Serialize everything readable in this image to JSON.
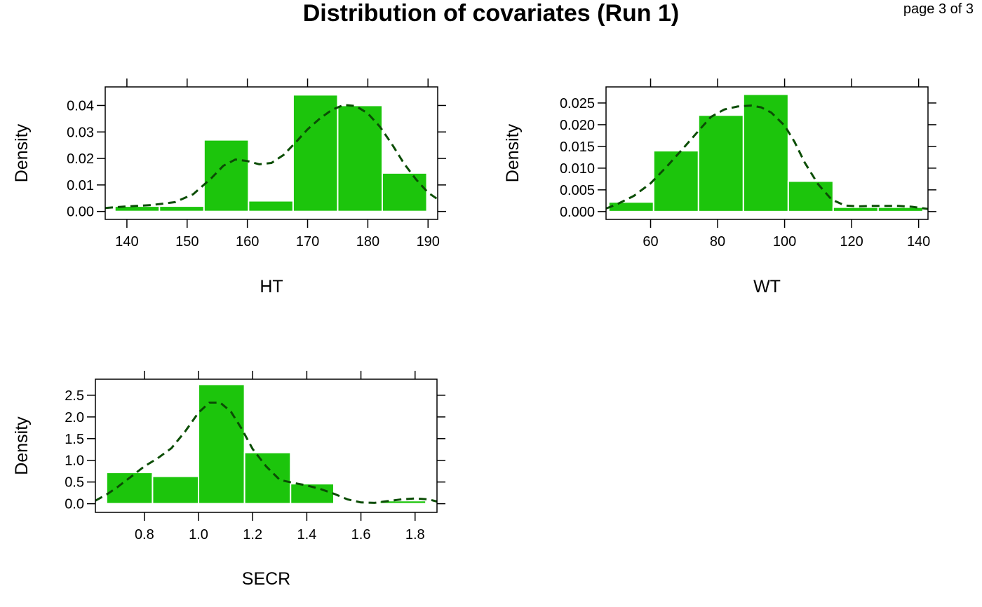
{
  "title": "Distribution of covariates (Run 1)",
  "page_indicator": "page 3 of 3",
  "colors": {
    "bar": "#1cc50c",
    "bar_edge": "#ffffff",
    "density": "#0b4d05",
    "axis": "#000000"
  },
  "chart_data": [
    {
      "type": "bar",
      "variant": "histogram-with-density",
      "xlabel": "HT",
      "ylabel": "Density",
      "xlim": [
        136.4,
        191.6
      ],
      "ylim": [
        -0.003,
        0.047
      ],
      "xticks": [
        140,
        150,
        160,
        170,
        180,
        190
      ],
      "xtick_labels": [
        "140",
        "150",
        "160",
        "170",
        "180",
        "190"
      ],
      "yticks": [
        0,
        0.01,
        0.02,
        0.03,
        0.04
      ],
      "ytick_labels": [
        "0.00",
        "0.01",
        "0.02",
        "0.03",
        "0.04"
      ],
      "bins": [
        {
          "from": 138,
          "to": 145.4,
          "density": 0.002
        },
        {
          "from": 145.4,
          "to": 152.8,
          "density": 0.002
        },
        {
          "from": 152.8,
          "to": 160.2,
          "density": 0.027
        },
        {
          "from": 160.2,
          "to": 167.6,
          "density": 0.004
        },
        {
          "from": 167.6,
          "to": 175,
          "density": 0.044
        },
        {
          "from": 175,
          "to": 182.4,
          "density": 0.04
        },
        {
          "from": 182.4,
          "to": 189.8,
          "density": 0.0145
        }
      ],
      "density": {
        "x": [
          136.4,
          140,
          144,
          148,
          151,
          154,
          156,
          158,
          160,
          162,
          164,
          166,
          168,
          170,
          172,
          174,
          176,
          178,
          180,
          182,
          184,
          186,
          188,
          190,
          191.6
        ],
        "y": [
          0.0013,
          0.0019,
          0.0024,
          0.0035,
          0.0065,
          0.0125,
          0.0172,
          0.0196,
          0.019,
          0.0178,
          0.0183,
          0.0213,
          0.026,
          0.031,
          0.035,
          0.0383,
          0.0402,
          0.0398,
          0.037,
          0.032,
          0.0254,
          0.0181,
          0.0121,
          0.0071,
          0.0046
        ]
      }
    },
    {
      "type": "bar",
      "variant": "histogram-with-density",
      "xlabel": "WT",
      "ylabel": "Density",
      "xlim": [
        46.7,
        142.8
      ],
      "ylim": [
        -0.0018,
        0.0287
      ],
      "xticks": [
        60,
        80,
        100,
        120,
        140
      ],
      "xtick_labels": [
        "60",
        "80",
        "100",
        "120",
        "140"
      ],
      "yticks": [
        0,
        0.005,
        0.01,
        0.015,
        0.02,
        0.025
      ],
      "ytick_labels": [
        "0.000",
        "0.005",
        "0.010",
        "0.015",
        "0.020",
        "0.025"
      ],
      "bins": [
        {
          "from": 47.5,
          "to": 60.9,
          "density": 0.0022
        },
        {
          "from": 60.9,
          "to": 74.3,
          "density": 0.014
        },
        {
          "from": 74.3,
          "to": 87.7,
          "density": 0.0222
        },
        {
          "from": 87.7,
          "to": 101.1,
          "density": 0.027
        },
        {
          "from": 101.1,
          "to": 114.5,
          "density": 0.007
        },
        {
          "from": 114.5,
          "to": 127.9,
          "density": 0.001
        },
        {
          "from": 127.9,
          "to": 141.3,
          "density": 0.001
        }
      ],
      "density": {
        "x": [
          46.7,
          50,
          55,
          60,
          65,
          70,
          75,
          78,
          82,
          86,
          90,
          93,
          96,
          100,
          103,
          106,
          110,
          114,
          118,
          122,
          126,
          130,
          134,
          138,
          142.8
        ],
        "y": [
          0.0007,
          0.0017,
          0.0036,
          0.0065,
          0.0105,
          0.0148,
          0.0192,
          0.0218,
          0.0235,
          0.0242,
          0.0244,
          0.024,
          0.0228,
          0.0198,
          0.016,
          0.0113,
          0.0063,
          0.0028,
          0.0014,
          0.0012,
          0.0013,
          0.0013,
          0.0013,
          0.0011,
          0.0006
        ]
      }
    },
    {
      "type": "bar",
      "variant": "histogram-with-density",
      "xlabel": "SECR",
      "ylabel": "Density",
      "xlim": [
        0.619,
        1.881
      ],
      "ylim": [
        -0.2,
        2.87
      ],
      "xticks": [
        0.8,
        1.0,
        1.2,
        1.4,
        1.6,
        1.8
      ],
      "xtick_labels": [
        "0.8",
        "1.0",
        "1.2",
        "1.4",
        "1.6",
        "1.8"
      ],
      "yticks": [
        0,
        0.5,
        1.0,
        1.5,
        2.0,
        2.5
      ],
      "ytick_labels": [
        "0.0",
        "0.5",
        "1.0",
        "1.5",
        "2.0",
        "2.5"
      ],
      "bins": [
        {
          "from": 0.66,
          "to": 0.83,
          "density": 0.72
        },
        {
          "from": 0.83,
          "to": 1.0,
          "density": 0.63
        },
        {
          "from": 1.0,
          "to": 1.17,
          "density": 2.75
        },
        {
          "from": 1.17,
          "to": 1.34,
          "density": 1.18
        },
        {
          "from": 1.34,
          "to": 1.5,
          "density": 0.46
        },
        {
          "from": 1.5,
          "to": 1.67,
          "density": 0.0
        },
        {
          "from": 1.67,
          "to": 1.84,
          "density": 0.07
        }
      ],
      "density": {
        "x": [
          0.619,
          0.66,
          0.7,
          0.75,
          0.8,
          0.85,
          0.9,
          0.95,
          1.0,
          1.04,
          1.08,
          1.12,
          1.16,
          1.2,
          1.25,
          1.3,
          1.35,
          1.4,
          1.45,
          1.5,
          1.55,
          1.6,
          1.65,
          1.7,
          1.75,
          1.8,
          1.85,
          1.881
        ],
        "y": [
          0.07,
          0.21,
          0.38,
          0.62,
          0.86,
          1.05,
          1.28,
          1.66,
          2.1,
          2.33,
          2.33,
          2.12,
          1.72,
          1.26,
          0.86,
          0.55,
          0.48,
          0.42,
          0.34,
          0.23,
          0.1,
          0.03,
          0.02,
          0.06,
          0.1,
          0.12,
          0.1,
          0.05
        ]
      }
    }
  ]
}
